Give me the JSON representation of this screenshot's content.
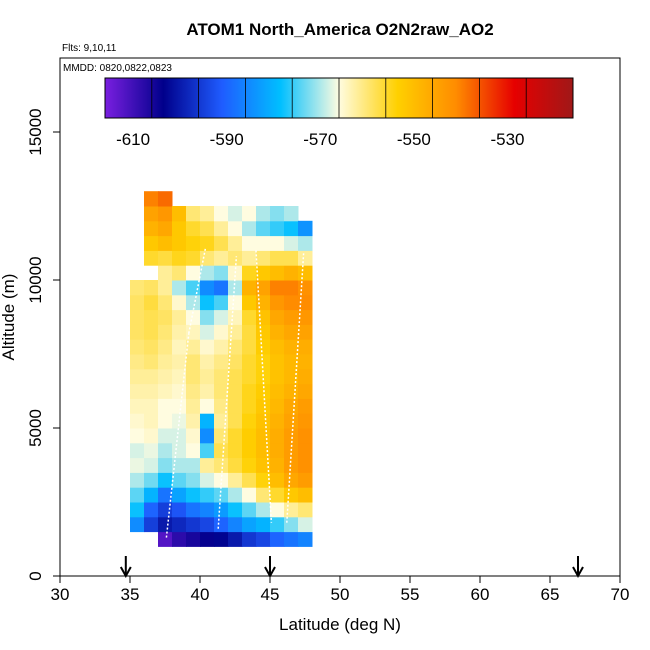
{
  "chart_data": {
    "type": "heatmap",
    "title": "ATOM1 North_America O2N2raw_AO2",
    "subtitle_flights": "Flts: 9,10,11",
    "subtitle_dates": "MMDD: 0820,0822,0823",
    "xlabel": "Latitude (deg N)",
    "ylabel": "Altitude (m)",
    "xlim": [
      30,
      70
    ],
    "ylim": [
      0,
      17500
    ],
    "xticks": [
      "30",
      "35",
      "40",
      "45",
      "50",
      "55",
      "60",
      "65",
      "70"
    ],
    "yticks": [
      "0",
      "5000",
      "10000",
      "15000"
    ],
    "colorbar": {
      "min": -616,
      "max": -516,
      "ticks": [
        "-610",
        "-590",
        "-570",
        "-550",
        "-530"
      ],
      "tick_values": [
        -610,
        -590,
        -570,
        -550,
        -530
      ],
      "stops": [
        "#7a1fe0",
        "#00008b",
        "#1f5cff",
        "#00bfff",
        "#fffce0",
        "#ffd000",
        "#ff8c00",
        "#e60000",
        "#a01818"
      ]
    },
    "markers_lat": [
      34.7,
      45,
      67
    ],
    "cell_size": {
      "lat": 1,
      "alt_m": 500
    },
    "grid": false,
    "legend": "colorbar top",
    "cells": [
      [
        35.5,
        1750,
        -585
      ],
      [
        35.5,
        2250,
        -578
      ],
      [
        35.5,
        2750,
        -574
      ],
      [
        35.5,
        3250,
        -570
      ],
      [
        35.5,
        3750,
        -567
      ],
      [
        35.5,
        4250,
        -568
      ],
      [
        35.5,
        4750,
        -566
      ],
      [
        35.5,
        5250,
        -565
      ],
      [
        35.5,
        5750,
        -564
      ],
      [
        35.5,
        6250,
        -563
      ],
      [
        35.5,
        6750,
        -562
      ],
      [
        35.5,
        7250,
        -561
      ],
      [
        35.5,
        7750,
        -560
      ],
      [
        35.5,
        8250,
        -559
      ],
      [
        35.5,
        8750,
        -559
      ],
      [
        35.5,
        9250,
        -559
      ],
      [
        35.5,
        9750,
        -560
      ],
      [
        36.5,
        1750,
        -595
      ],
      [
        36.5,
        2250,
        -590
      ],
      [
        36.5,
        2750,
        -580
      ],
      [
        36.5,
        3250,
        -573
      ],
      [
        36.5,
        3750,
        -568
      ],
      [
        36.5,
        4250,
        -567
      ],
      [
        36.5,
        4750,
        -565
      ],
      [
        36.5,
        5250,
        -564
      ],
      [
        36.5,
        5750,
        -564
      ],
      [
        36.5,
        6250,
        -563
      ],
      [
        36.5,
        6750,
        -562
      ],
      [
        36.5,
        7250,
        -560
      ],
      [
        36.5,
        7750,
        -559
      ],
      [
        36.5,
        8250,
        -558
      ],
      [
        36.5,
        8750,
        -558
      ],
      [
        36.5,
        9250,
        -557
      ],
      [
        36.5,
        9750,
        -559
      ],
      [
        36.5,
        10750,
        -556
      ],
      [
        36.5,
        11250,
        -552
      ],
      [
        36.5,
        11750,
        -548
      ],
      [
        36.5,
        12250,
        -545
      ],
      [
        36.5,
        12750,
        -540
      ],
      [
        37.5,
        1250,
        -612
      ],
      [
        37.5,
        1750,
        -600
      ],
      [
        37.5,
        2250,
        -595
      ],
      [
        37.5,
        2750,
        -588
      ],
      [
        37.5,
        3250,
        -578
      ],
      [
        37.5,
        3750,
        -572
      ],
      [
        37.5,
        4250,
        -570
      ],
      [
        37.5,
        4750,
        -568
      ],
      [
        37.5,
        5250,
        -566
      ],
      [
        37.5,
        5750,
        -566
      ],
      [
        37.5,
        6250,
        -564
      ],
      [
        37.5,
        6750,
        -563
      ],
      [
        37.5,
        7250,
        -562
      ],
      [
        37.5,
        7750,
        -561
      ],
      [
        37.5,
        8250,
        -560
      ],
      [
        37.5,
        8750,
        -559
      ],
      [
        37.5,
        9250,
        -560
      ],
      [
        37.5,
        9750,
        -562
      ],
      [
        37.5,
        10250,
        -562
      ],
      [
        37.5,
        10750,
        -557
      ],
      [
        37.5,
        11250,
        -550
      ],
      [
        37.5,
        11750,
        -546
      ],
      [
        37.5,
        12250,
        -543
      ],
      [
        37.5,
        12750,
        -538
      ],
      [
        38.5,
        1250,
        -608
      ],
      [
        38.5,
        1750,
        -598
      ],
      [
        38.5,
        2250,
        -592
      ],
      [
        38.5,
        2750,
        -582
      ],
      [
        38.5,
        3250,
        -574
      ],
      [
        38.5,
        3750,
        -570
      ],
      [
        38.5,
        4250,
        -568
      ],
      [
        38.5,
        4750,
        -568
      ],
      [
        38.5,
        5250,
        -567
      ],
      [
        38.5,
        5750,
        -566
      ],
      [
        38.5,
        6250,
        -565
      ],
      [
        38.5,
        6750,
        -564
      ],
      [
        38.5,
        7250,
        -563
      ],
      [
        38.5,
        7750,
        -564
      ],
      [
        38.5,
        8250,
        -563
      ],
      [
        38.5,
        8750,
        -562
      ],
      [
        38.5,
        9250,
        -565
      ],
      [
        38.5,
        9750,
        -570
      ],
      [
        38.5,
        10250,
        -560
      ],
      [
        38.5,
        10750,
        -555
      ],
      [
        38.5,
        11250,
        -552
      ],
      [
        38.5,
        11750,
        -552
      ],
      [
        38.5,
        12250,
        -550
      ],
      [
        39.5,
        1250,
        -606
      ],
      [
        39.5,
        1750,
        -596
      ],
      [
        39.5,
        2250,
        -588
      ],
      [
        39.5,
        2750,
        -578
      ],
      [
        39.5,
        3250,
        -572
      ],
      [
        39.5,
        3750,
        -570
      ],
      [
        39.5,
        4250,
        -566
      ],
      [
        39.5,
        4750,
        -565
      ],
      [
        39.5,
        5250,
        -563
      ],
      [
        39.5,
        5750,
        -562
      ],
      [
        39.5,
        6250,
        -561
      ],
      [
        39.5,
        6750,
        -560
      ],
      [
        39.5,
        7250,
        -560
      ],
      [
        39.5,
        7750,
        -562
      ],
      [
        39.5,
        8250,
        -564
      ],
      [
        39.5,
        8750,
        -566
      ],
      [
        39.5,
        9250,
        -570
      ],
      [
        39.5,
        9750,
        -575
      ],
      [
        39.5,
        10250,
        -566
      ],
      [
        39.5,
        10750,
        -556
      ],
      [
        39.5,
        11250,
        -554
      ],
      [
        39.5,
        11750,
        -556
      ],
      [
        39.5,
        12250,
        -560
      ],
      [
        40.5,
        1250,
        -604
      ],
      [
        40.5,
        1750,
        -594
      ],
      [
        40.5,
        2250,
        -586
      ],
      [
        40.5,
        2750,
        -576
      ],
      [
        40.5,
        3250,
        -568
      ],
      [
        40.5,
        3750,
        -562
      ],
      [
        40.5,
        4250,
        -575
      ],
      [
        40.5,
        4750,
        -585
      ],
      [
        40.5,
        5250,
        -580
      ],
      [
        40.5,
        5750,
        -566
      ],
      [
        40.5,
        6250,
        -563
      ],
      [
        40.5,
        6750,
        -562
      ],
      [
        40.5,
        7250,
        -563
      ],
      [
        40.5,
        7750,
        -565
      ],
      [
        40.5,
        8250,
        -568
      ],
      [
        40.5,
        8750,
        -572
      ],
      [
        40.5,
        9250,
        -578
      ],
      [
        40.5,
        9750,
        -585
      ],
      [
        40.5,
        10250,
        -570
      ],
      [
        40.5,
        10750,
        -560
      ],
      [
        40.5,
        11250,
        -555
      ],
      [
        40.5,
        11750,
        -558
      ],
      [
        40.5,
        12250,
        -562
      ],
      [
        41.5,
        1250,
        -603
      ],
      [
        41.5,
        1750,
        -590
      ],
      [
        41.5,
        2250,
        -583
      ],
      [
        41.5,
        2750,
        -574
      ],
      [
        41.5,
        3250,
        -566
      ],
      [
        41.5,
        3750,
        -560
      ],
      [
        41.5,
        4250,
        -558
      ],
      [
        41.5,
        4750,
        -560
      ],
      [
        41.5,
        5250,
        -562
      ],
      [
        41.5,
        5750,
        -561
      ],
      [
        41.5,
        6250,
        -560
      ],
      [
        41.5,
        6750,
        -560
      ],
      [
        41.5,
        7250,
        -561
      ],
      [
        41.5,
        7750,
        -563
      ],
      [
        41.5,
        8250,
        -565
      ],
      [
        41.5,
        8750,
        -568
      ],
      [
        41.5,
        9250,
        -575
      ],
      [
        41.5,
        9750,
        -588
      ],
      [
        41.5,
        10250,
        -572
      ],
      [
        41.5,
        10750,
        -562
      ],
      [
        41.5,
        11250,
        -558
      ],
      [
        41.5,
        11750,
        -562
      ],
      [
        41.5,
        12250,
        -566
      ],
      [
        42.5,
        1250,
        -600
      ],
      [
        42.5,
        1750,
        -586
      ],
      [
        42.5,
        2250,
        -578
      ],
      [
        42.5,
        2750,
        -570
      ],
      [
        42.5,
        3250,
        -562
      ],
      [
        42.5,
        3750,
        -557
      ],
      [
        42.5,
        4250,
        -556
      ],
      [
        42.5,
        4750,
        -556
      ],
      [
        42.5,
        5250,
        -558
      ],
      [
        42.5,
        5750,
        -558
      ],
      [
        42.5,
        6250,
        -558
      ],
      [
        42.5,
        6750,
        -558
      ],
      [
        42.5,
        7250,
        -559
      ],
      [
        42.5,
        7750,
        -560
      ],
      [
        42.5,
        8250,
        -562
      ],
      [
        42.5,
        8750,
        -564
      ],
      [
        42.5,
        9250,
        -566
      ],
      [
        42.5,
        9750,
        -570
      ],
      [
        42.5,
        10250,
        -565
      ],
      [
        42.5,
        10750,
        -560
      ],
      [
        42.5,
        11250,
        -562
      ],
      [
        42.5,
        11750,
        -566
      ],
      [
        42.5,
        12250,
        -568
      ],
      [
        43.5,
        1250,
        -596
      ],
      [
        43.5,
        1750,
        -582
      ],
      [
        43.5,
        2250,
        -574
      ],
      [
        43.5,
        2750,
        -566
      ],
      [
        43.5,
        3250,
        -558
      ],
      [
        43.5,
        3750,
        -554
      ],
      [
        43.5,
        4250,
        -553
      ],
      [
        43.5,
        4750,
        -553
      ],
      [
        43.5,
        5250,
        -554
      ],
      [
        43.5,
        5750,
        -555
      ],
      [
        43.5,
        6250,
        -555
      ],
      [
        43.5,
        6750,
        -556
      ],
      [
        43.5,
        7250,
        -556
      ],
      [
        43.5,
        7750,
        -557
      ],
      [
        43.5,
        8250,
        -557
      ],
      [
        43.5,
        8750,
        -556
      ],
      [
        43.5,
        9250,
        -552
      ],
      [
        43.5,
        9750,
        -548
      ],
      [
        43.5,
        10250,
        -555
      ],
      [
        43.5,
        10750,
        -562
      ],
      [
        43.5,
        11250,
        -566
      ],
      [
        43.5,
        11750,
        -570
      ],
      [
        43.5,
        12250,
        -566
      ],
      [
        44.5,
        1250,
        -594
      ],
      [
        44.5,
        1750,
        -580
      ],
      [
        44.5,
        2250,
        -570
      ],
      [
        44.5,
        2750,
        -560
      ],
      [
        44.5,
        3250,
        -554
      ],
      [
        44.5,
        3750,
        -551
      ],
      [
        44.5,
        4250,
        -550
      ],
      [
        44.5,
        4750,
        -550
      ],
      [
        44.5,
        5250,
        -551
      ],
      [
        44.5,
        5750,
        -552
      ],
      [
        44.5,
        6250,
        -553
      ],
      [
        44.5,
        6750,
        -554
      ],
      [
        44.5,
        7250,
        -554
      ],
      [
        44.5,
        7750,
        -553
      ],
      [
        44.5,
        8250,
        -552
      ],
      [
        44.5,
        8750,
        -551
      ],
      [
        44.5,
        9250,
        -548
      ],
      [
        44.5,
        9750,
        -545
      ],
      [
        44.5,
        10250,
        -552
      ],
      [
        44.5,
        10750,
        -560
      ],
      [
        44.5,
        11250,
        -566
      ],
      [
        44.5,
        11750,
        -574
      ],
      [
        44.5,
        12250,
        -570
      ],
      [
        45.5,
        1250,
        -590
      ],
      [
        45.5,
        1750,
        -576
      ],
      [
        45.5,
        2250,
        -566
      ],
      [
        45.5,
        2750,
        -556
      ],
      [
        45.5,
        3250,
        -550
      ],
      [
        45.5,
        3750,
        -548
      ],
      [
        45.5,
        4250,
        -547
      ],
      [
        45.5,
        4750,
        -547
      ],
      [
        45.5,
        5250,
        -548
      ],
      [
        45.5,
        5750,
        -549
      ],
      [
        45.5,
        6250,
        -550
      ],
      [
        45.5,
        6750,
        -551
      ],
      [
        45.5,
        7250,
        -551
      ],
      [
        45.5,
        7750,
        -550
      ],
      [
        45.5,
        8250,
        -548
      ],
      [
        45.5,
        8750,
        -546
      ],
      [
        45.5,
        9250,
        -543
      ],
      [
        45.5,
        9750,
        -540
      ],
      [
        45.5,
        10250,
        -550
      ],
      [
        45.5,
        10750,
        -558
      ],
      [
        45.5,
        11250,
        -566
      ],
      [
        45.5,
        11750,
        -576
      ],
      [
        45.5,
        12250,
        -572
      ],
      [
        46.5,
        1250,
        -588
      ],
      [
        46.5,
        1750,
        -572
      ],
      [
        46.5,
        2250,
        -562
      ],
      [
        46.5,
        2750,
        -552
      ],
      [
        46.5,
        3250,
        -546
      ],
      [
        46.5,
        3750,
        -544
      ],
      [
        46.5,
        4250,
        -544
      ],
      [
        46.5,
        4750,
        -544
      ],
      [
        46.5,
        5250,
        -545
      ],
      [
        46.5,
        5750,
        -546
      ],
      [
        46.5,
        6250,
        -548
      ],
      [
        46.5,
        6750,
        -549
      ],
      [
        46.5,
        7250,
        -549
      ],
      [
        46.5,
        7750,
        -548
      ],
      [
        46.5,
        8250,
        -546
      ],
      [
        46.5,
        8750,
        -544
      ],
      [
        46.5,
        9250,
        -541
      ],
      [
        46.5,
        9750,
        -540
      ],
      [
        46.5,
        10250,
        -548
      ],
      [
        46.5,
        10750,
        -558
      ],
      [
        46.5,
        11250,
        -568
      ],
      [
        46.5,
        11750,
        -578
      ],
      [
        46.5,
        12250,
        -570
      ],
      [
        47.5,
        1250,
        -586
      ],
      [
        47.5,
        1750,
        -568
      ],
      [
        47.5,
        2250,
        -560
      ],
      [
        47.5,
        2750,
        -550
      ],
      [
        47.5,
        3250,
        -544
      ],
      [
        47.5,
        3750,
        -542
      ],
      [
        47.5,
        4250,
        -542
      ],
      [
        47.5,
        4750,
        -542
      ],
      [
        47.5,
        5250,
        -543
      ],
      [
        47.5,
        5750,
        -544
      ],
      [
        47.5,
        6250,
        -546
      ],
      [
        47.5,
        6750,
        -547
      ],
      [
        47.5,
        7250,
        -548
      ],
      [
        47.5,
        7750,
        -547
      ],
      [
        47.5,
        8250,
        -545
      ],
      [
        47.5,
        8750,
        -543
      ],
      [
        47.5,
        9250,
        -541
      ],
      [
        47.5,
        9750,
        -542
      ],
      [
        47.5,
        10250,
        -550
      ],
      [
        47.5,
        10750,
        -562
      ],
      [
        47.5,
        11250,
        -570
      ],
      [
        47.5,
        11750,
        -584
      ]
    ]
  }
}
